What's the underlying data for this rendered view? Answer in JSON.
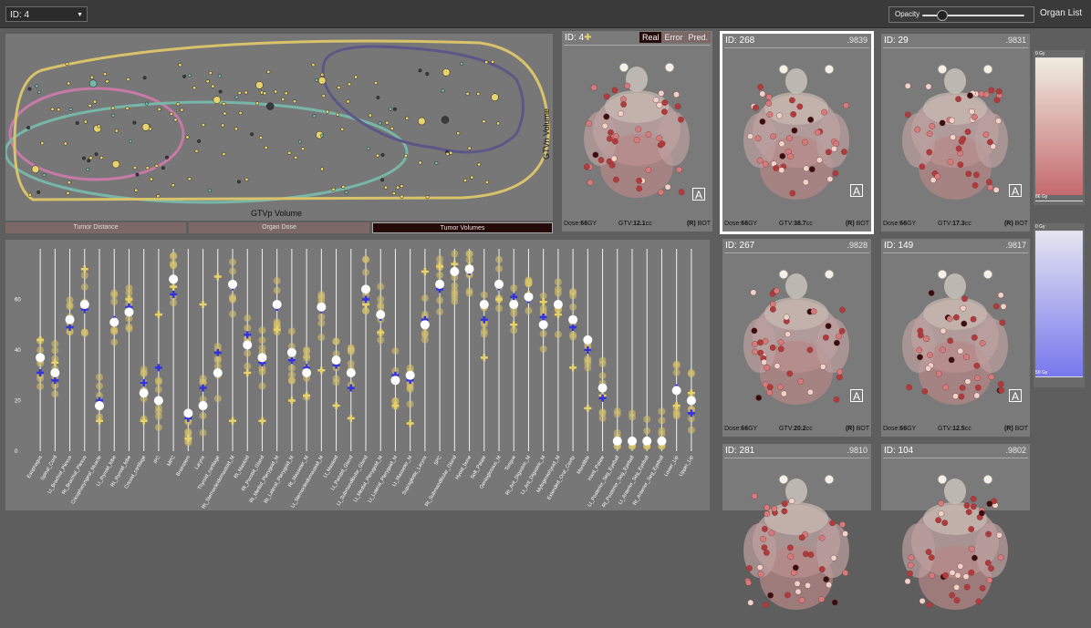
{
  "header": {
    "id_select_value": "ID: 4",
    "opacity_label": "Opacity",
    "opacity_value": 0.2,
    "organ_list_label": "Organ List"
  },
  "scatter": {
    "xlabel": "GTVp Volume",
    "ylabel": "GTVn Volume"
  },
  "tabs": [
    {
      "label": "Tumor Distance",
      "active": false
    },
    {
      "label": "Organ Dose",
      "active": false
    },
    {
      "label": "Tumor Volumes",
      "active": true
    }
  ],
  "main_card": {
    "id_label": "ID: 4",
    "modes": [
      "Real",
      "Error",
      "Pred."
    ],
    "active_mode": "Real",
    "footer": {
      "dose_prefix": "Dose:",
      "dose_value": "66",
      "dose_unit": "GY",
      "gtv_prefix": "GTV:",
      "gtv_value": "12.1",
      "gtv_unit": "cc",
      "side": "(R)",
      "site": "BOT"
    }
  },
  "cards": [
    {
      "id": "ID: 268",
      "score": ".9839",
      "selected": true,
      "dose": "66",
      "gtv": "38.7",
      "side": "(R)",
      "site": "BOT"
    },
    {
      "id": "ID: 29",
      "score": ".9831",
      "selected": false,
      "dose": "66",
      "gtv": "17.3",
      "side": "(R)",
      "site": "BOT"
    },
    {
      "id": "ID: 267",
      "score": ".9828",
      "selected": false,
      "dose": "66",
      "gtv": "20.2",
      "side": "(R)",
      "site": "BOT"
    },
    {
      "id": "ID: 149",
      "score": ".9817",
      "selected": false,
      "dose": "66",
      "gtv": "12.5",
      "side": "(R)",
      "site": "BOT"
    },
    {
      "id": "ID: 281",
      "score": ".9810",
      "selected": false
    },
    {
      "id": "ID: 104",
      "score": ".9802",
      "selected": false
    }
  ],
  "footer_labels": {
    "dose_prefix": "Dose:",
    "dose_unit": "GY",
    "gtv_prefix": "GTV:",
    "gtv_unit": "cc"
  },
  "legends": [
    {
      "top_label": "0 Gy",
      "bottom_label": "86 Gy",
      "colors": [
        "#f0ece0",
        "#c46a6e"
      ]
    },
    {
      "top_label": "0 Gy",
      "bottom_label": "59 Gy",
      "colors": [
        "#e4e4f0",
        "#7777ee"
      ]
    }
  ],
  "colors": {
    "tumor_volume_marker": "#e8d36a",
    "blue_marker": "#3333dd",
    "selected_outline": "#ffffff"
  },
  "chart_data": {
    "type": "scatter",
    "ylim": [
      0,
      80
    ],
    "yticks": [
      0,
      20,
      40,
      60
    ],
    "categories": [
      "Esophagus",
      "Spinal_Cord",
      "Lt_Brachial_Plexus",
      "Rt_Brachial_Plexus",
      "Cricopharyngeal_Muscle",
      "Lt_thyroid_lobe",
      "Rt_thyroid_lobe",
      "Cricoid_cartilage",
      "IPC",
      "MPC",
      "Brainstem",
      "Larynx",
      "Thyroid_cartilage",
      "Rt_Sternocleidomastoid_M",
      "Rt_Mastoid",
      "Rt_Parotid_Gland",
      "Rt_Medial_Pterygoid_M",
      "Rt_Lateral_Pterygoid_M",
      "Rt_Masseter_M",
      "Lt_Sternocleidomastoid_M",
      "Lt_Mastoid",
      "Lt_Parotid_Gland",
      "Lt_Submandibular_Gland",
      "Lt_Medial_Pterygoid_M",
      "Lt_Lateral_Pterygoid_M",
      "Lt_Masseter_M",
      "Supraglottic_Larynx",
      "SPC",
      "Rt_Submandibular_Gland",
      "Hyoid_bone",
      "Soft_Palate",
      "Genioglossus_M",
      "Tongue",
      "Rt_Ant_Digastric_M",
      "Lt_Ant_Digastric_M",
      "Mylogeniohyoid_M",
      "Extended_Oral_Cavity",
      "Mandible",
      "Hard_Palate",
      "Lt_Posterior_Seg_Eyeball",
      "Rt_Posterior_Seg_Eyeball",
      "Lt_Anterior_Seg_Eyeball",
      "Rt_Anterior_Seg_Eyeball",
      "Lower_Lip",
      "Upper_Lip"
    ],
    "series": [
      {
        "name": "Real",
        "values": [
          37,
          31,
          52,
          58,
          18,
          51,
          55,
          23,
          20,
          68,
          15,
          18,
          31,
          66,
          42,
          37,
          58,
          39,
          31,
          57,
          36,
          31,
          64,
          54,
          28,
          30,
          50,
          66,
          71,
          72,
          58,
          66,
          58,
          61,
          50,
          58,
          52,
          44,
          25,
          4,
          4,
          4,
          4,
          24,
          20
        ]
      },
      {
        "name": "Pred.",
        "values": [
          31,
          28,
          49,
          56,
          20,
          52,
          57,
          27,
          33,
          62,
          13,
          25,
          39,
          65,
          46,
          35,
          57,
          36,
          33,
          56,
          34,
          25,
          60,
          53,
          30,
          28,
          52,
          64,
          71,
          71,
          52,
          65,
          61,
          60,
          53,
          58,
          49,
          40,
          21,
          4,
          4,
          4,
          4,
          25,
          15
        ]
      },
      {
        "name": "Tumor",
        "values": [
          44,
          35,
          52,
          72,
          12,
          52,
          60,
          12,
          54,
          65,
          5,
          58,
          69,
          12,
          31,
          12,
          48,
          20,
          22,
          32,
          18,
          13,
          58,
          47,
          18,
          11,
          71,
          73,
          74,
          73,
          37,
          60,
          50,
          62,
          59,
          54,
          33,
          17,
          22,
          4,
          4,
          4,
          4,
          18,
          23
        ]
      }
    ]
  }
}
